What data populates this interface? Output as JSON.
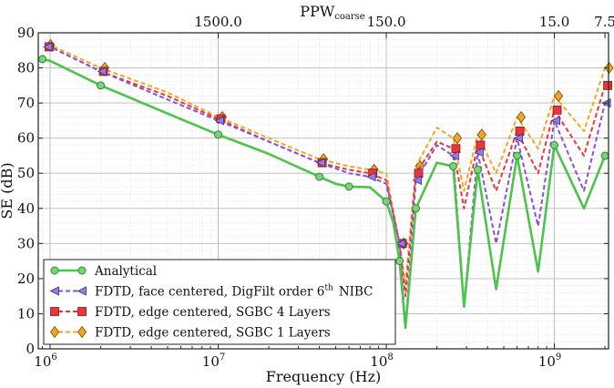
{
  "chart_data": {
    "type": "line",
    "xscale": "log",
    "xlim": [
      850000,
      2100000000
    ],
    "ylim": [
      0,
      90
    ],
    "xlabel": "Frequency (Hz)",
    "ylabel": "SE (dB)",
    "top_axis": {
      "label": "PPW",
      "label_sub": "coarse",
      "ticks": [
        {
          "label": "1500.0",
          "x": 10000000
        },
        {
          "label": "150.0",
          "x": 100000000
        },
        {
          "label": "15.0",
          "x": 1000000000
        },
        {
          "label": "7.5",
          "x": 2000000000
        }
      ]
    },
    "x_ticks": [
      {
        "label": "10",
        "exp": "6",
        "x": 1000000
      },
      {
        "label": "10",
        "exp": "7",
        "x": 10000000
      },
      {
        "label": "10",
        "exp": "8",
        "x": 100000000
      },
      {
        "label": "10",
        "exp": "9",
        "x": 1000000000
      }
    ],
    "y_ticks": [
      0,
      10,
      20,
      30,
      40,
      50,
      60,
      70,
      80,
      90
    ],
    "grid": true,
    "legend_position": "bottom-left",
    "series": [
      {
        "name": "Analytical",
        "color": "#4cc44c",
        "style": "solid",
        "marker": "circle",
        "offset": 0,
        "x": [
          900000,
          1000000,
          2000000,
          5000000,
          10000000,
          20000000,
          40000000,
          50000000,
          60000000,
          80000000,
          100000000,
          110000000,
          120000000,
          130000000,
          150000000,
          200000000,
          250000000,
          290000000,
          350000000,
          450000000,
          600000000,
          800000000,
          1000000000,
          1500000000,
          2000000000
        ],
        "y": [
          82.5,
          82,
          75,
          67,
          61,
          55.5,
          49,
          47,
          46.2,
          46,
          42,
          36,
          25,
          6,
          40,
          53,
          52,
          12,
          51,
          17,
          55,
          22,
          58,
          40,
          55
        ]
      },
      {
        "name": "FDTD, face centered, DigFilt order 6",
        "name_sup": "th",
        "name_tail": "NIBC",
        "color": "#8a4fd8",
        "style": "dashed",
        "marker": "triangle-left",
        "offset": 1.5,
        "x": [
          950000,
          1000000,
          2000000,
          5000000,
          10000000,
          20000000,
          40000000,
          60000000,
          80000000,
          100000000,
          120000000,
          130000000,
          150000000,
          200000000,
          250000000,
          290000000,
          350000000,
          450000000,
          600000000,
          800000000,
          1000000000,
          1500000000,
          2000000000
        ],
        "y": [
          86,
          86,
          79,
          71,
          65,
          59,
          53,
          50,
          49,
          47,
          30,
          6,
          48,
          58,
          55,
          12,
          56,
          30,
          60,
          35,
          65,
          45,
          70
        ]
      },
      {
        "name": "FDTD, edge centered, SGBC 4 Layers",
        "color": "#e8363a",
        "style": "dashed",
        "marker": "square",
        "offset": 3,
        "x": [
          950000,
          1000000,
          2000000,
          5000000,
          10000000,
          20000000,
          40000000,
          60000000,
          80000000,
          100000000,
          120000000,
          130000000,
          150000000,
          200000000,
          250000000,
          290000000,
          350000000,
          450000000,
          600000000,
          800000000,
          1000000000,
          1500000000,
          2000000000
        ],
        "y": [
          86,
          86,
          79,
          72,
          65.5,
          59,
          53,
          51,
          50,
          48,
          30,
          15,
          50,
          59,
          57,
          40,
          58,
          45,
          62,
          50,
          68,
          55,
          75
        ]
      },
      {
        "name": "FDTD, edge centered, SGBC 1 Layers",
        "color": "#f4a623",
        "style": "dashed",
        "marker": "diamond",
        "offset": 4.5,
        "x": [
          950000,
          1000000,
          2000000,
          5000000,
          10000000,
          20000000,
          40000000,
          60000000,
          80000000,
          100000000,
          120000000,
          130000000,
          150000000,
          200000000,
          250000000,
          290000000,
          350000000,
          450000000,
          600000000,
          800000000,
          1000000000,
          1500000000,
          2000000000
        ],
        "y": [
          86.5,
          86.5,
          80,
          73,
          66,
          60,
          54,
          52,
          51,
          50,
          30,
          18,
          52,
          63,
          60,
          45,
          61,
          50,
          66,
          57,
          72,
          62,
          80
        ]
      }
    ]
  }
}
